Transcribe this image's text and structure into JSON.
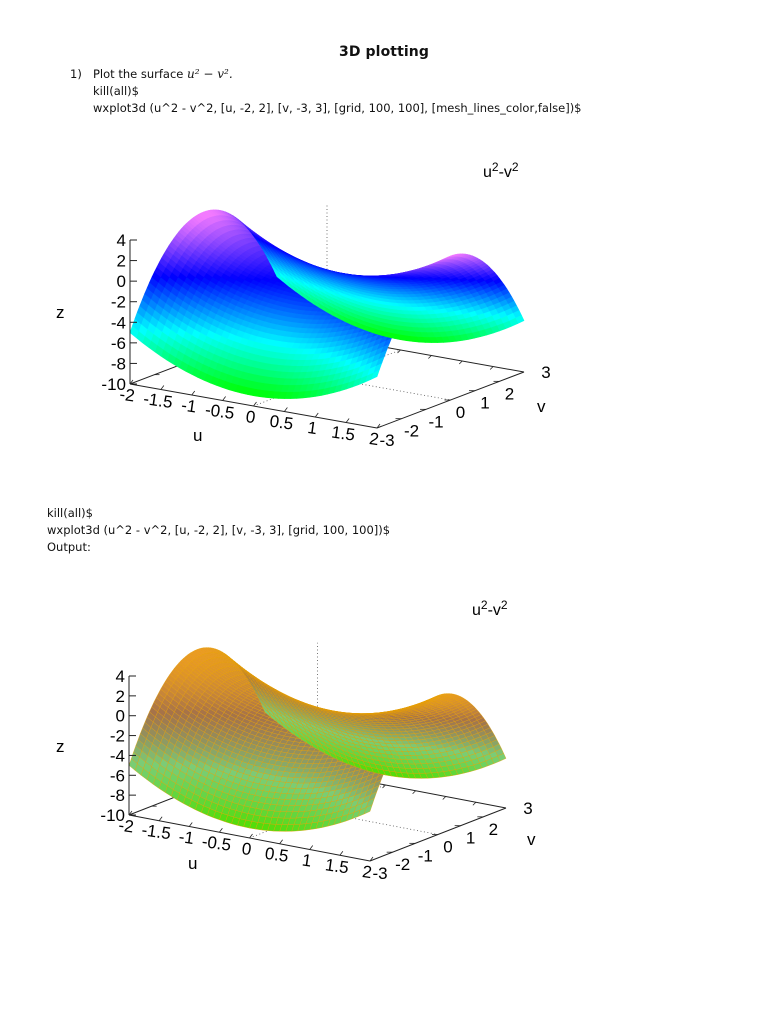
{
  "document": {
    "title": "3D plotting",
    "item1": {
      "number": "1)",
      "prompt_text": "Plot the surface",
      "prompt_math": "u² − v².",
      "code_line1": "kill(all)$",
      "code_line2": "wxplot3d (u^2 - v^2, [u, -2, 2], [v, -3, 3], [grid, 100, 100], [mesh_lines_color,false])$"
    },
    "item2": {
      "code_line1": "kill(all)$",
      "code_line2": "wxplot3d (u^2 - v^2, [u, -2, 2], [v, -3, 3], [grid, 100, 100])$",
      "output_label": "Output:"
    }
  },
  "chart_data": [
    {
      "type": "surface3d",
      "title": "u2-v2",
      "legend": "u^2-v^2",
      "function": "z = u^2 - v^2",
      "xlabel": "u",
      "ylabel": "v",
      "zlabel": "z",
      "u_range": [
        -2,
        2
      ],
      "v_range": [
        -3,
        3
      ],
      "z_range": [
        -10,
        4
      ],
      "u_ticks": [
        "-2",
        "-1.5",
        "-1",
        "-0.5",
        "0",
        "0.5",
        "1",
        "1.5",
        "2"
      ],
      "v_ticks": [
        "-3",
        "-2",
        "-1",
        "0",
        "1",
        "2",
        "3"
      ],
      "z_ticks": [
        "4",
        "2",
        "0",
        "-2",
        "-4",
        "-6",
        "-8",
        "-10"
      ],
      "grid": [
        100,
        100
      ],
      "mesh_lines": false,
      "colormap": [
        "#00ff00",
        "#00ffff",
        "#0000ff",
        "#ff80ff"
      ],
      "samples": {
        "u=±2,v=0": 4,
        "u=0,v=0": 0,
        "u=0,v=±3": -9,
        "u=±2,v=±3": -5
      }
    },
    {
      "type": "surface3d",
      "title": "u2-v2",
      "legend": "u^2-v^2",
      "function": "z = u^2 - v^2",
      "xlabel": "u",
      "ylabel": "v",
      "zlabel": "z",
      "u_range": [
        -2,
        2
      ],
      "v_range": [
        -3,
        3
      ],
      "z_range": [
        -10,
        4
      ],
      "u_ticks": [
        "-2",
        "-1.5",
        "-1",
        "-0.5",
        "0",
        "0.5",
        "1",
        "1.5",
        "2"
      ],
      "v_ticks": [
        "-3",
        "-2",
        "-1",
        "0",
        "1",
        "2",
        "3"
      ],
      "z_ticks": [
        "4",
        "2",
        "0",
        "-2",
        "-4",
        "-6",
        "-8",
        "-10"
      ],
      "grid": [
        100,
        100
      ],
      "mesh_lines": true,
      "mesh_color": "#e8a000",
      "colormap": [
        "#00ff00",
        "#00ffff",
        "#0000ff",
        "#ff80ff"
      ],
      "samples": {
        "u=±2,v=0": 4,
        "u=0,v=0": 0,
        "u=0,v=±3": -9,
        "u=±2,v=±3": -5
      }
    }
  ],
  "plots": [
    {
      "legend_base1": "u",
      "legend_exp1": "2",
      "legend_sep": "-v",
      "legend_exp2": "2",
      "zlabel": "z",
      "ulabel": "u",
      "vlabel": "v",
      "z_ticks": [
        "4",
        "2",
        "0",
        "-2",
        "-4",
        "-6",
        "-8",
        "-10"
      ],
      "u_ticks": [
        "-2",
        "-1.5",
        "-1",
        "-0.5",
        "0",
        "0.5",
        "1",
        "1.5",
        "2"
      ],
      "v_ticks": [
        "-3",
        "-2",
        "-1",
        "0",
        "1",
        "2",
        "3"
      ]
    },
    {
      "legend_base1": "u",
      "legend_exp1": "2",
      "legend_sep": "-v",
      "legend_exp2": "2",
      "zlabel": "z",
      "ulabel": "u",
      "vlabel": "v",
      "z_ticks": [
        "4",
        "2",
        "0",
        "-2",
        "-4",
        "-6",
        "-8",
        "-10"
      ],
      "u_ticks": [
        "-2",
        "-1.5",
        "-1",
        "-0.5",
        "0",
        "0.5",
        "1",
        "1.5",
        "2"
      ],
      "v_ticks": [
        "-3",
        "-2",
        "-1",
        "0",
        "1",
        "2",
        "3"
      ]
    }
  ]
}
